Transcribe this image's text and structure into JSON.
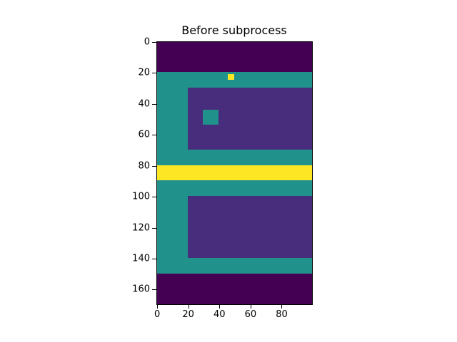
{
  "chart_data": {
    "type": "heatmap",
    "title": "Before subprocess",
    "xlabel": "",
    "ylabel": "",
    "image_shape": [
      170,
      100
    ],
    "xlim": [
      -0.5,
      99.5
    ],
    "ylim": [
      169.5,
      -0.5
    ],
    "x_ticks": [
      0,
      20,
      40,
      60,
      80
    ],
    "y_ticks": [
      0,
      20,
      40,
      60,
      80,
      100,
      120,
      140,
      160
    ],
    "colormap": "viridis",
    "colors": {
      "background": "#440154",
      "frame": "#21918c",
      "room": "#472d7b",
      "highlight": "#fde725"
    },
    "regions": [
      {
        "label": "background",
        "rows": [
          0,
          170
        ],
        "cols": [
          0,
          100
        ],
        "color": "#440154"
      },
      {
        "label": "frame",
        "rows": [
          20,
          150
        ],
        "cols": [
          0,
          100
        ],
        "color": "#21918c"
      },
      {
        "label": "upper-room",
        "rows": [
          30,
          70
        ],
        "cols": [
          20,
          100
        ],
        "color": "#472d7b"
      },
      {
        "label": "small-square",
        "rows": [
          44,
          54
        ],
        "cols": [
          30,
          40
        ],
        "color": "#21918c"
      },
      {
        "label": "yellow-dot",
        "rows": [
          21,
          25
        ],
        "cols": [
          46,
          50
        ],
        "color": "#fde725"
      },
      {
        "label": "yellow-band",
        "rows": [
          80,
          90
        ],
        "cols": [
          0,
          100
        ],
        "color": "#fde725"
      },
      {
        "label": "lower-room",
        "rows": [
          100,
          140
        ],
        "cols": [
          20,
          100
        ],
        "color": "#472d7b"
      }
    ]
  }
}
